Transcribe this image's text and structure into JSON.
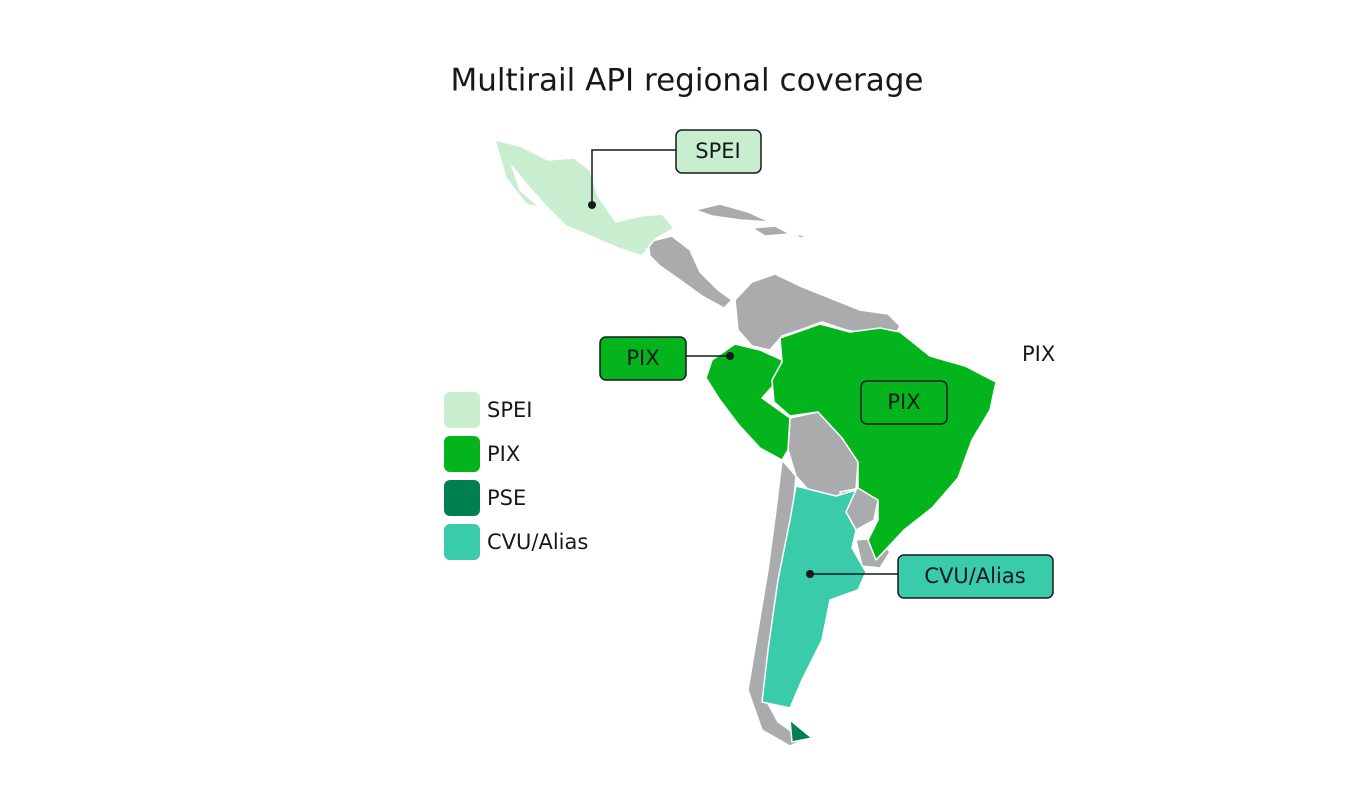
{
  "title": "Multirail API regional coverage",
  "legend": [
    {
      "label": "SPEI",
      "color": "#c8eecf"
    },
    {
      "label": "PIX",
      "color": "#04b41c"
    },
    {
      "label": "PSE",
      "color": "#008050"
    },
    {
      "label": "CVU/Alias",
      "color": "#3acbaa"
    }
  ],
  "callouts": [
    {
      "label": "SPEI"
    },
    {
      "label": "PIX"
    },
    {
      "label": "PIX"
    },
    {
      "label": "CVU/Alias"
    }
  ],
  "annotations": [
    "PIX"
  ]
}
